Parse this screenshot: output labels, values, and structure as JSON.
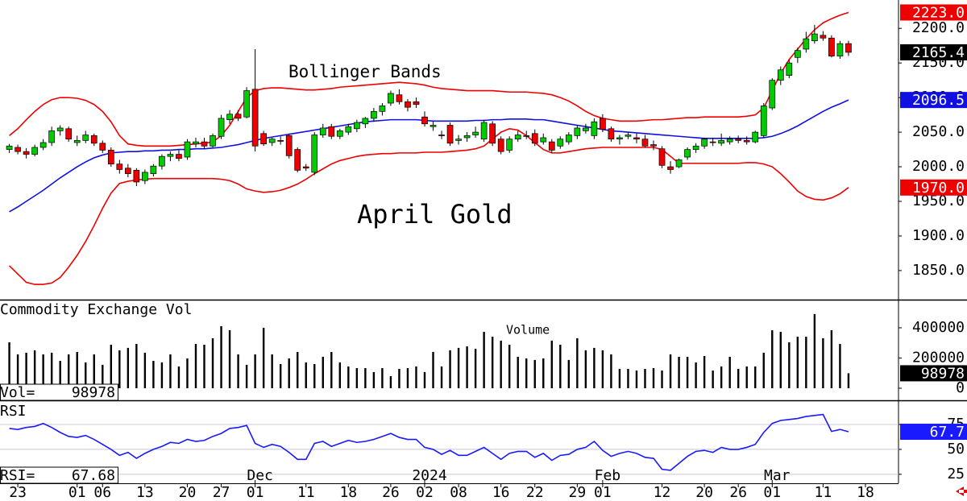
{
  "chart_data": [
    {
      "type": "candlestick",
      "annotations": [
        "Bollinger Bands",
        "April Gold"
      ],
      "x": [
        0,
        1,
        2,
        3,
        4,
        5,
        6,
        7,
        8,
        9,
        10,
        11,
        12,
        13,
        14,
        15,
        16,
        17,
        18,
        19,
        20,
        21,
        22,
        23,
        24,
        25,
        26,
        27,
        28,
        29,
        30,
        31,
        32,
        33,
        34,
        35,
        36,
        37,
        38,
        39,
        40,
        41,
        42,
        43,
        44,
        45,
        46,
        47,
        48,
        49,
        50,
        51,
        52,
        53,
        54,
        55,
        56,
        57,
        58,
        59,
        60,
        61,
        62,
        63,
        64,
        65,
        66,
        67,
        68,
        69,
        70,
        71,
        72,
        73,
        74,
        75,
        76,
        77,
        78,
        79,
        80,
        81,
        82,
        83,
        84,
        85,
        86,
        87,
        88,
        89,
        90,
        91,
        92,
        93,
        94,
        95,
        96,
        97,
        98,
        99
      ],
      "xlim": [
        -1.1,
        104.9
      ],
      "ylim": [
        1808,
        2241
      ],
      "yticks": [
        {
          "value": 1850,
          "label": "1850.0"
        },
        {
          "value": 1900,
          "label": "1900.0"
        },
        {
          "value": 1950,
          "label": "1950.0"
        },
        {
          "value": 2000,
          "label": "2000.0"
        },
        {
          "value": 2050,
          "label": "2050.0"
        },
        {
          "value": 2100,
          "label": "2100.0"
        },
        {
          "value": 2150,
          "label": "2150.0"
        },
        {
          "value": 2200,
          "label": "2200.0"
        }
      ],
      "up_color": "#00cc00",
      "down_color": "#ee0000",
      "ohlc": {
        "open": [
          2025,
          2028,
          2022,
          2018,
          2028,
          2035,
          2052,
          2055,
          2035,
          2038,
          2045,
          2034,
          2024,
          2004,
          1998,
          1995,
          1980,
          1990,
          2001,
          2015,
          2018,
          2014,
          2033,
          2036,
          2030,
          2044,
          2068,
          2076,
          2072,
          2112,
          2048,
          2035,
          2038,
          2045,
          2025,
          2000,
          1992,
          2046,
          2058,
          2044,
          2050,
          2055,
          2062,
          2070,
          2080,
          2092,
          2104,
          2094,
          2094,
          2072,
          2058,
          2046,
          2060,
          2038,
          2042,
          2046,
          2040,
          2062,
          2040,
          2024,
          2040,
          2044,
          2048,
          2036,
          2036,
          2030,
          2036,
          2045,
          2052,
          2045,
          2070,
          2055,
          2040,
          2044,
          2042,
          2040,
          2032,
          2026,
          2000,
          2000,
          2014,
          2025,
          2030,
          2036,
          2034,
          2036,
          2040,
          2038,
          2036,
          2045,
          2085,
          2125,
          2132,
          2158,
          2170,
          2182,
          2190,
          2186,
          2160,
          2178
        ],
        "high": [
          2033,
          2032,
          2027,
          2032,
          2040,
          2058,
          2060,
          2058,
          2045,
          2052,
          2048,
          2038,
          2028,
          2010,
          2004,
          1998,
          1996,
          2004,
          2018,
          2022,
          2024,
          2040,
          2042,
          2042,
          2048,
          2075,
          2082,
          2082,
          2115,
          2170,
          2052,
          2042,
          2044,
          2048,
          2028,
          2004,
          2050,
          2062,
          2062,
          2055,
          2062,
          2068,
          2072,
          2085,
          2092,
          2110,
          2112,
          2098,
          2100,
          2080,
          2066,
          2052,
          2064,
          2046,
          2050,
          2058,
          2068,
          2066,
          2044,
          2044,
          2052,
          2052,
          2054,
          2048,
          2040,
          2044,
          2050,
          2060,
          2062,
          2070,
          2076,
          2058,
          2046,
          2050,
          2048,
          2046,
          2038,
          2030,
          2008,
          2012,
          2028,
          2034,
          2042,
          2042,
          2048,
          2044,
          2045,
          2044,
          2052,
          2092,
          2128,
          2145,
          2155,
          2172,
          2195,
          2205,
          2196,
          2190,
          2182,
          2182
        ],
        "low": [
          2020,
          2018,
          2012,
          2015,
          2024,
          2030,
          2045,
          2036,
          2030,
          2034,
          2030,
          2020,
          2000,
          1990,
          1985,
          1972,
          1975,
          1986,
          1996,
          2008,
          2008,
          2010,
          2028,
          2026,
          2028,
          2040,
          2062,
          2066,
          2070,
          2022,
          2030,
          2030,
          2032,
          2012,
          1992,
          1994,
          1988,
          2042,
          2040,
          2040,
          2046,
          2050,
          2056,
          2065,
          2074,
          2088,
          2090,
          2080,
          2085,
          2058,
          2052,
          2040,
          2030,
          2032,
          2036,
          2042,
          2036,
          2030,
          2018,
          2020,
          2036,
          2040,
          2030,
          2032,
          2020,
          2026,
          2032,
          2040,
          2048,
          2040,
          2050,
          2036,
          2032,
          2040,
          2034,
          2028,
          2024,
          1998,
          1990,
          1998,
          2010,
          2020,
          2026,
          2030,
          2030,
          2032,
          2034,
          2032,
          2034,
          2042,
          2082,
          2118,
          2128,
          2150,
          2165,
          2178,
          2182,
          2158,
          2156,
          2160
        ],
        "close": [
          2030,
          2022,
          2018,
          2028,
          2035,
          2052,
          2056,
          2040,
          2038,
          2046,
          2034,
          2024,
          2004,
          1996,
          1990,
          1978,
          1992,
          2001,
          2015,
          2018,
          2012,
          2036,
          2036,
          2030,
          2045,
          2070,
          2076,
          2070,
          2110,
          2030,
          2033,
          2040,
          2037,
          2016,
          1995,
          1998,
          2046,
          2056,
          2044,
          2052,
          2058,
          2064,
          2070,
          2080,
          2088,
          2106,
          2094,
          2086,
          2090,
          2062,
          2060,
          2045,
          2034,
          2040,
          2045,
          2050,
          2064,
          2034,
          2022,
          2040,
          2046,
          2045,
          2034,
          2042,
          2024,
          2040,
          2046,
          2056,
          2056,
          2065,
          2054,
          2040,
          2042,
          2046,
          2040,
          2030,
          2030,
          2002,
          1996,
          2010,
          2025,
          2030,
          2040,
          2035,
          2038,
          2040,
          2038,
          2036,
          2050,
          2088,
          2125,
          2140,
          2150,
          2168,
          2185,
          2192,
          2186,
          2160,
          2178,
          2165.4
        ]
      },
      "bands": [
        {
          "color": "#ee0000",
          "value_label": "2223.0",
          "values": [
            2045,
            2055,
            2068,
            2080,
            2090,
            2097,
            2100,
            2100,
            2099,
            2096,
            2090,
            2080,
            2065,
            2045,
            2033,
            2031,
            2030,
            2030,
            2030,
            2030,
            2031,
            2032,
            2033,
            2034,
            2036,
            2045,
            2060,
            2080,
            2100,
            2110,
            2113,
            2114,
            2114,
            2113,
            2112,
            2111,
            2111,
            2112,
            2113,
            2115,
            2116,
            2117,
            2118,
            2119,
            2120,
            2121,
            2122,
            2121,
            2120,
            2118,
            2115,
            2113,
            2112,
            2111,
            2110,
            2110,
            2110,
            2110,
            2109,
            2108,
            2108,
            2108,
            2107,
            2106,
            2104,
            2100,
            2095,
            2088,
            2080,
            2074,
            2070,
            2068,
            2066,
            2066,
            2066,
            2067,
            2068,
            2068,
            2069,
            2070,
            2071,
            2071,
            2072,
            2072,
            2072,
            2072,
            2072,
            2073,
            2075,
            2085,
            2110,
            2135,
            2155,
            2170,
            2185,
            2198,
            2208,
            2214,
            2219,
            2223
          ]
        },
        {
          "color": "#1010e0",
          "values": [
            1935,
            1942,
            1950,
            1958,
            1966,
            1975,
            1984,
            1992,
            2000,
            2007,
            2013,
            2017,
            2020,
            2021,
            2022,
            2022,
            2023,
            2023,
            2024,
            2024,
            2025,
            2025,
            2026,
            2026,
            2027,
            2028,
            2030,
            2032,
            2035,
            2038,
            2041,
            2043,
            2045,
            2047,
            2049,
            2051,
            2053,
            2055,
            2057,
            2059,
            2061,
            2063,
            2065,
            2066,
            2067,
            2068,
            2068,
            2068,
            2068,
            2067,
            2066,
            2066,
            2066,
            2066,
            2066,
            2067,
            2067,
            2068,
            2068,
            2069,
            2069,
            2069,
            2068,
            2068,
            2066,
            2064,
            2062,
            2060,
            2058,
            2056,
            2054,
            2052,
            2051,
            2050,
            2049,
            2048,
            2047,
            2046,
            2045,
            2044,
            2043,
            2042,
            2041,
            2041,
            2041,
            2041,
            2041,
            2041,
            2041,
            2042,
            2044,
            2048,
            2053,
            2059,
            2066,
            2073,
            2080,
            2086,
            2091,
            2096.5
          ]
        },
        {
          "color": "#ee0000",
          "value_label": "1970.0",
          "values": [
            1857,
            1845,
            1833,
            1830,
            1830,
            1832,
            1840,
            1855,
            1872,
            1892,
            1915,
            1940,
            1962,
            1976,
            1979,
            1981,
            1982,
            1983,
            1983,
            1983,
            1983,
            1983,
            1983,
            1983,
            1983,
            1982,
            1980,
            1975,
            1968,
            1965,
            1963,
            1964,
            1966,
            1970,
            1975,
            1982,
            1990,
            1997,
            2004,
            2009,
            2012,
            2015,
            2017,
            2018,
            2019,
            2019,
            2020,
            2020,
            2020,
            2021,
            2021,
            2021,
            2022,
            2023,
            2024,
            2026,
            2030,
            2040,
            2050,
            2055,
            2053,
            2045,
            2035,
            2025,
            2020,
            2020,
            2022,
            2024,
            2026,
            2027,
            2028,
            2028,
            2028,
            2028,
            2028,
            2028,
            2028,
            2025,
            2015,
            2005,
            2005,
            2005,
            2005,
            2005,
            2005,
            2005,
            2005,
            2006,
            2006,
            2004,
            2000,
            1990,
            1978,
            1965,
            1957,
            1953,
            1952,
            1955,
            1961,
            1970
          ]
        }
      ]
    },
    {
      "type": "bar",
      "title": "Commodity Exchange Vol",
      "annotation": "Volume",
      "readout": "Vol=",
      "color": "#000000",
      "ylim": [
        -80000,
        581000
      ],
      "yticks": [
        0,
        200000,
        400000
      ],
      "values": [
        304000,
        224000,
        235000,
        251000,
        224000,
        235000,
        181000,
        224000,
        240000,
        171000,
        224000,
        155000,
        288000,
        251000,
        267000,
        293000,
        235000,
        181000,
        171000,
        224000,
        144000,
        197000,
        293000,
        288000,
        331000,
        411000,
        384000,
        224000,
        155000,
        224000,
        400000,
        224000,
        160000,
        197000,
        240000,
        171000,
        160000,
        208000,
        240000,
        171000,
        144000,
        133000,
        133000,
        107000,
        133000,
        80000,
        128000,
        133000,
        144000,
        107000,
        240000,
        144000,
        251000,
        267000,
        277000,
        261000,
        373000,
        341000,
        315000,
        288000,
        208000,
        197000,
        187000,
        197000,
        315000,
        288000,
        187000,
        331000,
        251000,
        267000,
        251000,
        224000,
        128000,
        128000,
        117000,
        128000,
        133000,
        117000,
        224000,
        208000,
        208000,
        171000,
        213000,
        117000,
        144000,
        208000,
        128000,
        144000,
        144000,
        235000,
        384000,
        373000,
        304000,
        341000,
        341000,
        491000,
        331000,
        384000,
        293000,
        98978
      ]
    },
    {
      "type": "line",
      "title": "RSI",
      "readout": "RSI=",
      "color": "#1a1aff",
      "value_label": "67.7",
      "ylim": [
        16,
        98.4
      ],
      "yticks": [
        25,
        50,
        75
      ],
      "grid": true,
      "values": [
        71,
        70,
        72,
        73,
        76,
        72,
        67,
        63,
        62,
        64,
        60,
        55,
        50,
        44,
        47,
        41,
        46,
        50,
        53,
        57,
        56,
        60,
        58,
        59,
        63,
        66,
        71,
        72,
        74,
        56,
        52,
        55,
        53,
        47,
        40,
        40,
        56,
        58,
        53,
        56,
        59,
        57,
        58,
        60,
        63,
        66,
        62,
        60,
        60,
        52,
        50,
        45,
        49,
        44,
        44,
        48,
        52,
        46,
        40,
        46,
        48,
        48,
        42,
        46,
        39,
        44,
        45,
        50,
        52,
        58,
        49,
        43,
        46,
        48,
        46,
        42,
        41,
        30,
        29,
        36,
        43,
        48,
        49,
        47,
        52,
        50,
        50,
        52,
        55,
        67,
        76,
        79,
        80,
        81,
        83,
        84,
        85,
        68,
        70,
        67.68
      ],
      "xticks": [
        {
          "value": 1,
          "label": "23"
        },
        {
          "value": 8,
          "label": "01"
        },
        {
          "value": 11,
          "label": "06"
        },
        {
          "value": 16,
          "label": "13"
        },
        {
          "value": 21,
          "label": "20"
        },
        {
          "value": 25,
          "label": "27"
        },
        {
          "value": 29,
          "label": "01"
        },
        {
          "value": 35,
          "label": "11"
        },
        {
          "value": 40,
          "label": "18"
        },
        {
          "value": 45,
          "label": "26"
        },
        {
          "value": 49,
          "label": "02"
        },
        {
          "value": 53,
          "label": "08"
        },
        {
          "value": 58,
          "label": "16"
        },
        {
          "value": 62,
          "label": "22"
        },
        {
          "value": 67,
          "label": "29"
        },
        {
          "value": 70,
          "label": "01"
        },
        {
          "value": 77,
          "label": "12"
        },
        {
          "value": 82,
          "label": "20"
        },
        {
          "value": 86,
          "label": "26"
        },
        {
          "value": 90,
          "label": "01"
        },
        {
          "value": 96,
          "label": "11"
        },
        {
          "value": 101,
          "label": "18"
        }
      ],
      "month_ticks": [
        {
          "value": 29,
          "label": "Dec"
        },
        {
          "value": 49,
          "label": "2024"
        },
        {
          "value": 70,
          "label": "Feb"
        },
        {
          "value": 90,
          "label": "Mar"
        }
      ]
    }
  ]
}
